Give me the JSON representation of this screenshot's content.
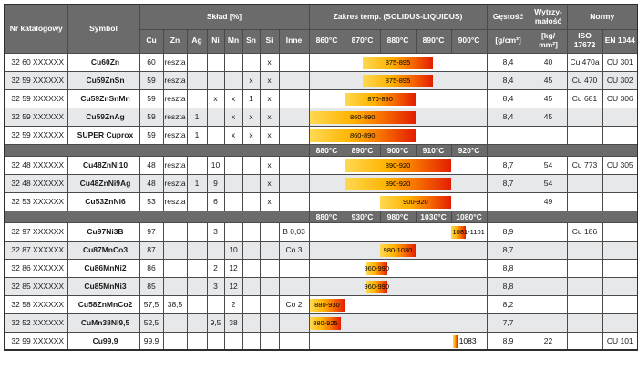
{
  "colors": {
    "header_bg": "#6b6b6b",
    "row_alt": "#e7e8ea",
    "grid": "#4a4a4a",
    "bar_gradient": [
      "#ffd952",
      "#ffb300",
      "#f66a00",
      "#e31e00"
    ]
  },
  "header": {
    "nr": "Nr katalogowy",
    "symbol": "Symbol",
    "sklad": "Skład [%]",
    "sklad_cols": [
      "Cu",
      "Zn",
      "Ag",
      "Ni",
      "Mn",
      "Sn",
      "Si",
      "Inne"
    ],
    "zakres": "Zakres temp. (SOLIDUS-LIQUIDUS)",
    "temp_cols": [
      "860°C",
      "870°C",
      "880°C",
      "890°C",
      "900°C"
    ],
    "gestosc": "Gęstość",
    "gestosc_unit": "[g/cm³]",
    "wytrz": "Wytrzy- małość",
    "wytrz_unit": "[kg/ mm²]",
    "normy": "Normy",
    "iso": "ISO 17672",
    "en": "EN 1044"
  },
  "rows": [
    {
      "type": "data",
      "nr": "32 60 XXXXXX",
      "symbol": "Cu60Zn",
      "cu": "60",
      "zn": "reszta",
      "ag": "",
      "ni": "",
      "mn": "",
      "sn": "",
      "si": "x",
      "inne": "",
      "bar": {
        "label": "875-895",
        "from": 875,
        "to": 895,
        "base": 860,
        "step": 10,
        "align": "center"
      },
      "gestosc": "8,4",
      "wytrz": "40",
      "iso": "Cu 470a",
      "en": "CU 301"
    },
    {
      "type": "data",
      "nr": "32 59 XXXXXX",
      "symbol": "Cu59ZnSn",
      "cu": "59",
      "zn": "reszta",
      "ag": "",
      "ni": "",
      "mn": "",
      "sn": "x",
      "si": "x",
      "inne": "",
      "bar": {
        "label": "875-895",
        "from": 875,
        "to": 895,
        "base": 860,
        "step": 10,
        "align": "center"
      },
      "gestosc": "8,4",
      "wytrz": "45",
      "iso": "Cu 470",
      "en": "CU 302"
    },
    {
      "type": "data",
      "nr": "32 59 XXXXXX",
      "symbol": "Cu59ZnSnMn",
      "cu": "59",
      "zn": "reszta",
      "ag": "",
      "ni": "x",
      "mn": "x",
      "sn": "1",
      "si": "x",
      "inne": "",
      "bar": {
        "label": "870-890",
        "from": 870,
        "to": 890,
        "base": 860,
        "step": 10,
        "align": "center"
      },
      "gestosc": "8,4",
      "wytrz": "45",
      "iso": "Cu 681",
      "en": "CU 306"
    },
    {
      "type": "data",
      "nr": "32 59 XXXXXX",
      "symbol": "Cu59ZnAg",
      "cu": "59",
      "zn": "reszta",
      "ag": "1",
      "ni": "",
      "mn": "x",
      "sn": "x",
      "si": "x",
      "inne": "",
      "bar": {
        "label": "860-890",
        "from": 860,
        "to": 890,
        "base": 860,
        "step": 10,
        "align": "center"
      },
      "gestosc": "8,4",
      "wytrz": "45",
      "iso": "",
      "en": ""
    },
    {
      "type": "data",
      "nr": "32 59 XXXXXX",
      "symbol": "SUPER Cuprox",
      "cu": "59",
      "zn": "reszta",
      "ag": "1",
      "ni": "",
      "mn": "x",
      "sn": "x",
      "si": "x",
      "inne": "",
      "bar": {
        "label": "860-890",
        "from": 860,
        "to": 890,
        "base": 860,
        "step": 10,
        "align": "center"
      },
      "gestosc": "",
      "wytrz": "",
      "iso": "",
      "en": ""
    },
    {
      "type": "scale",
      "temps": [
        "880°C",
        "890°C",
        "900°C",
        "910°C",
        "920°C"
      ]
    },
    {
      "type": "data",
      "nr": "32 48 XXXXXX",
      "symbol": "Cu48ZnNi10",
      "cu": "48",
      "zn": "reszta",
      "ag": "",
      "ni": "10",
      "mn": "",
      "sn": "",
      "si": "x",
      "inne": "",
      "bar": {
        "label": "890-920",
        "from": 890,
        "to": 920,
        "base": 880,
        "step": 10,
        "align": "center"
      },
      "gestosc": "8,7",
      "wytrz": "54",
      "iso": "Cu 773",
      "en": "CU 305"
    },
    {
      "type": "data",
      "nr": "32 48 XXXXXX",
      "symbol": "Cu48ZnNi9Ag",
      "cu": "48",
      "zn": "reszta",
      "ag": "1",
      "ni": "9",
      "mn": "",
      "sn": "",
      "si": "x",
      "inne": "",
      "bar": {
        "label": "890-920",
        "from": 890,
        "to": 920,
        "base": 880,
        "step": 10,
        "align": "center"
      },
      "gestosc": "8,7",
      "wytrz": "54",
      "iso": "",
      "en": ""
    },
    {
      "type": "data",
      "nr": "32 53 XXXXXX",
      "symbol": "Cu53ZnNi6",
      "cu": "53",
      "zn": "reszta",
      "ag": "",
      "ni": "6",
      "mn": "",
      "sn": "",
      "si": "x",
      "inne": "",
      "bar": {
        "label": "900-920",
        "from": 900,
        "to": 920,
        "base": 880,
        "step": 10,
        "align": "center"
      },
      "gestosc": "",
      "wytrz": "49",
      "iso": "",
      "en": ""
    },
    {
      "type": "scale",
      "temps": [
        "880°C",
        "930°C",
        "980°C",
        "1030°C",
        "1080°C"
      ]
    },
    {
      "type": "data",
      "nr": "32 97 XXXXXX",
      "symbol": "Cu97Ni3B",
      "cu": "97",
      "zn": "",
      "ag": "",
      "ni": "3",
      "mn": "",
      "sn": "",
      "si": "",
      "inne": "B 0,03",
      "bar": {
        "label": "1081-1101",
        "from": 1081,
        "to": 1101,
        "base": 880,
        "step": 50,
        "align": "start"
      },
      "gestosc": "8,9",
      "wytrz": "",
      "iso": "Cu 186",
      "en": ""
    },
    {
      "type": "data",
      "nr": "32 87 XXXXXX",
      "symbol": "Cu87MnCo3",
      "cu": "87",
      "zn": "",
      "ag": "",
      "ni": "",
      "mn": "10",
      "sn": "",
      "si": "",
      "inne": "Co 3",
      "bar": {
        "label": "980-1030",
        "from": 980,
        "to": 1030,
        "base": 880,
        "step": 50,
        "align": "center"
      },
      "gestosc": "8,7",
      "wytrz": "",
      "iso": "",
      "en": ""
    },
    {
      "type": "data",
      "nr": "32 86 XXXXXX",
      "symbol": "Cu86MnNi2",
      "cu": "86",
      "zn": "",
      "ag": "",
      "ni": "2",
      "mn": "12",
      "sn": "",
      "si": "",
      "inne": "",
      "bar": {
        "label": "960-990",
        "from": 960,
        "to": 990,
        "base": 880,
        "step": 50,
        "align": "center"
      },
      "gestosc": "8,8",
      "wytrz": "",
      "iso": "",
      "en": ""
    },
    {
      "type": "data",
      "nr": "32 85 XXXXXX",
      "symbol": "Cu85MnNi3",
      "cu": "85",
      "zn": "",
      "ag": "",
      "ni": "3",
      "mn": "12",
      "sn": "",
      "si": "",
      "inne": "",
      "bar": {
        "label": "960-990",
        "from": 960,
        "to": 990,
        "base": 880,
        "step": 50,
        "align": "center"
      },
      "gestosc": "8,8",
      "wytrz": "",
      "iso": "",
      "en": ""
    },
    {
      "type": "data",
      "nr": "32 58 XXXXXX",
      "symbol": "Cu58ZnMnCo2",
      "cu": "57,5",
      "zn": "38,5",
      "ag": "",
      "ni": "",
      "mn": "2",
      "sn": "",
      "si": "",
      "inne": "Co 2",
      "bar": {
        "label": "880-930",
        "from": 880,
        "to": 930,
        "base": 880,
        "step": 50,
        "align": "center"
      },
      "gestosc": "8,2",
      "wytrz": "",
      "iso": "",
      "en": ""
    },
    {
      "type": "data",
      "nr": "32 52 XXXXXX",
      "symbol": "CuMn38Ni9,5",
      "cu": "52,5",
      "zn": "",
      "ag": "",
      "ni": "9,5",
      "mn": "38",
      "sn": "",
      "si": "",
      "inne": "",
      "bar": {
        "label": "880-925",
        "from": 880,
        "to": 925,
        "base": 880,
        "step": 50,
        "align": "center"
      },
      "gestosc": "7,7",
      "wytrz": "",
      "iso": "",
      "en": ""
    },
    {
      "type": "data",
      "nr": "32 99 XXXXXX",
      "symbol": "Cu99,9",
      "cu": "99,9",
      "zn": "",
      "ag": "",
      "ni": "",
      "mn": "",
      "sn": "",
      "si": "",
      "inne": "",
      "bar": {
        "label": "1083",
        "from": 1083,
        "to": 1089,
        "base": 880,
        "step": 50,
        "align": "after"
      },
      "gestosc": "8,9",
      "wytrz": "22",
      "iso": "",
      "en": "CU 101"
    }
  ]
}
